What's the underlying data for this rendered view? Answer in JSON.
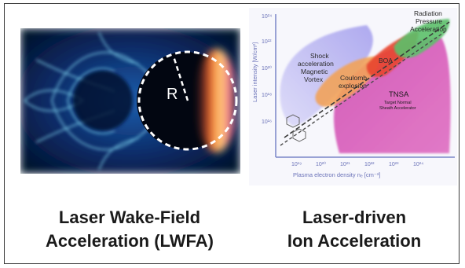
{
  "left_panel": {
    "radius_label": "R",
    "caption_line1": "Laser Wake-Field",
    "caption_line2": "Acceleration (LWFA)"
  },
  "right_panel": {
    "caption_line1": "Laser-driven",
    "caption_line2": "Ion Acceleration",
    "axes": {
      "ylabel": "Laser intensity [W/cm²]",
      "xlabel": "Plasma electron density nₑ [cm⁻³]",
      "y_ticks": [
        "10¹⁶",
        "10¹⁸",
        "10²⁰",
        "10²²",
        "10²⁴"
      ],
      "x_ticks": [
        "10¹⁹",
        "10²⁰",
        "10²¹",
        "10²²",
        "10²³",
        "10²⁴"
      ]
    },
    "regions": {
      "shock": [
        "Shock",
        "acceleration",
        "Magnetic",
        "Vortex"
      ],
      "coulomb": [
        "Coulomb",
        "explosion"
      ],
      "boa": "BOA",
      "radiation": [
        "Radiation",
        "Pressure",
        "Acceleration"
      ],
      "tnsa": "TNSA",
      "tnsa_sub": [
        "Target Normal",
        "Sheath Accelerator"
      ]
    }
  },
  "colors": {
    "frame": "#3a3a3a",
    "shock_region": "#b7b3f0",
    "tnsa_region": "#d958b8",
    "coulomb_region": "#f2a35a",
    "boa_region": "#e8442e",
    "rpa_region": "#5cc06a",
    "axis": "#7a85c8"
  }
}
